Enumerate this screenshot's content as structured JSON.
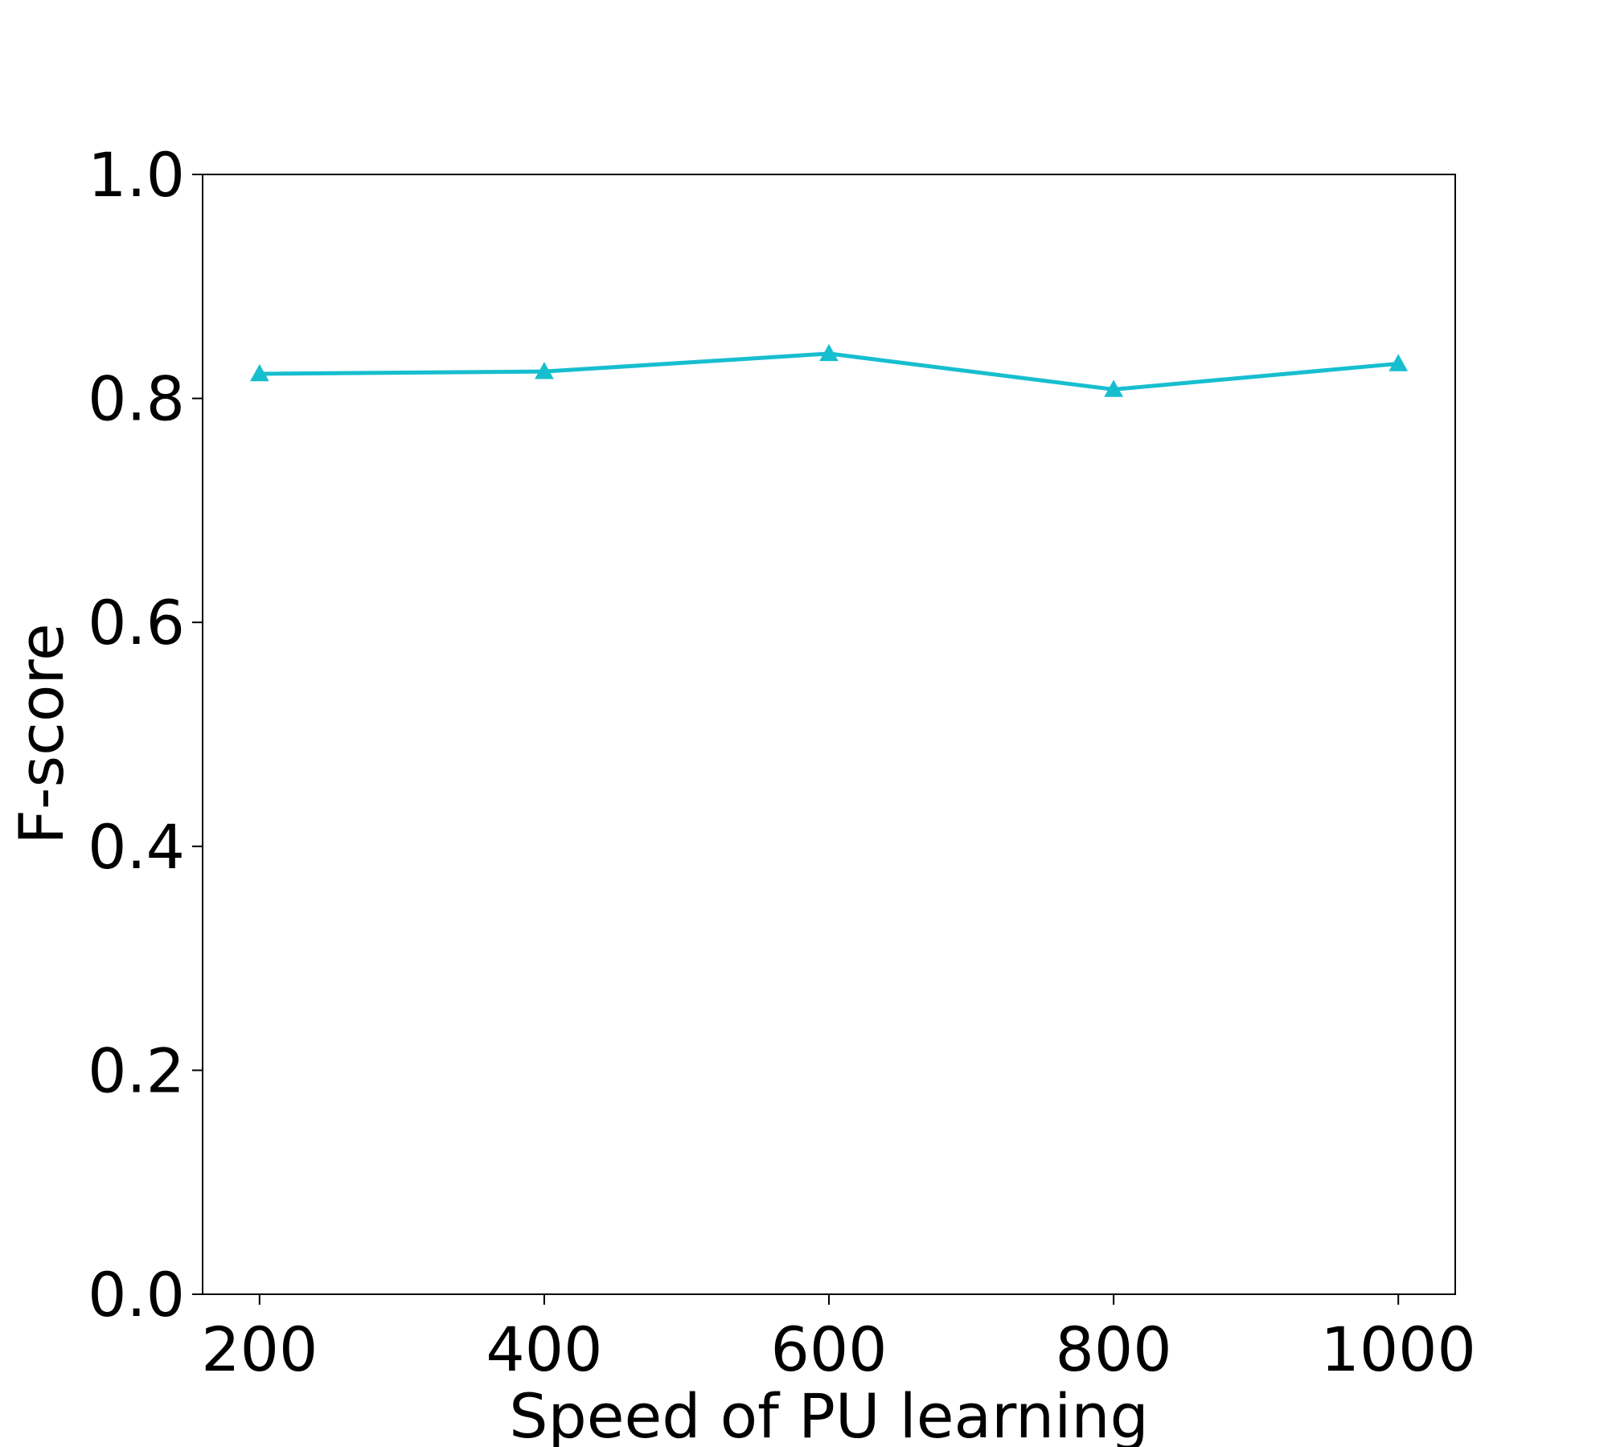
{
  "chart_data": {
    "type": "line",
    "xlabel": "Speed of PU learning",
    "ylabel": "F-score",
    "x": [
      200,
      400,
      600,
      800,
      1000
    ],
    "xticks": [
      "200",
      "400",
      "600",
      "800",
      "1000"
    ],
    "yticks": [
      "0.0",
      "0.2",
      "0.4",
      "0.6",
      "0.8",
      "1.0"
    ],
    "ylim": [
      0.0,
      1.0
    ],
    "xlim": [
      160,
      1040
    ],
    "grid": false,
    "series": [
      {
        "values": [
          0.822,
          0.824,
          0.84,
          0.808,
          0.831
        ],
        "color": "#17becf",
        "marker": "triangle-up"
      }
    ]
  }
}
